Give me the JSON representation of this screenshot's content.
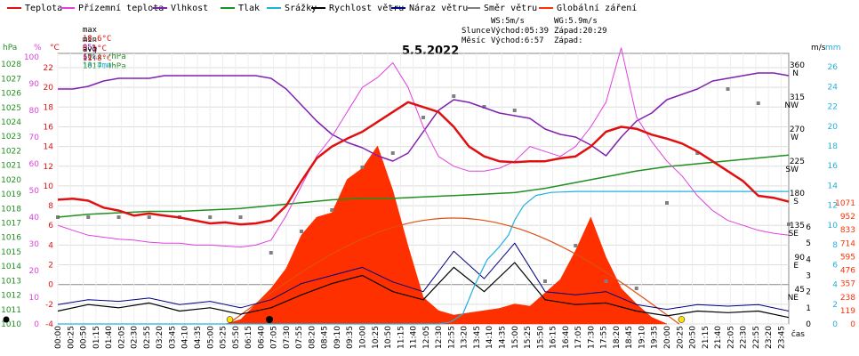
{
  "legend": [
    {
      "label": "Teplota",
      "color": "#e01010"
    },
    {
      "label": "Přízemní teplota",
      "color": "#e040e0"
    },
    {
      "label": "Vlhkost",
      "color": "#8020b0"
    },
    {
      "label": "Tlak",
      "color": "#209020"
    },
    {
      "label": "Srážky",
      "color": "#20b0e0"
    },
    {
      "label": "Rychlost větru",
      "color": "#000000"
    },
    {
      "label": "Náraz větru",
      "color": "#000080"
    },
    {
      "label": "Směr větru",
      "color": "#808080"
    },
    {
      "label": "Globální záření",
      "color": "#ff3000"
    }
  ],
  "stats": {
    "max_label": "max",
    "max_temp": "18.6°C",
    "max_hum": "95%",
    "max_press": "1021.7hPa",
    "max_rain": "13.4mm",
    "min_label": "min",
    "min_temp": "6.1°C",
    "min_hum": "61%",
    "min_press": "1017.4hPa",
    "avg_label": "avg",
    "avg_temp": "11.8°C"
  },
  "wind_info": {
    "ws": "WS:5m/s",
    "wg": "WG:5.9m/s"
  },
  "sun_moon": {
    "sun_label": "Slunce",
    "sun_rise": "Východ:05:39",
    "sun_set": "Západ:20:29",
    "moon_label": "Měsíc",
    "moon_rise": "Východ:6:57",
    "moon_set": "Západ:"
  },
  "colors": {
    "temp": "#e01010",
    "ground": "#e040e0",
    "hum": "#8020b0",
    "press": "#209020",
    "rain": "#20b0e0",
    "wind": "#000000",
    "gust": "#000080",
    "dir": "#808080",
    "solar": "#ff3000"
  },
  "chart_data": {
    "type": "line",
    "title": "5.5.2022",
    "xlabel": "čas",
    "x_ticks": [
      "00:00",
      "00:25",
      "00:50",
      "01:15",
      "01:40",
      "02:05",
      "02:30",
      "02:55",
      "03:20",
      "03:45",
      "04:10",
      "04:35",
      "05:00",
      "05:25",
      "05:50",
      "06:15",
      "06:40",
      "07:05",
      "07:30",
      "07:55",
      "08:20",
      "08:45",
      "09:10",
      "09:35",
      "10:00",
      "10:25",
      "10:50",
      "11:15",
      "11:40",
      "12:05",
      "12:30",
      "12:55",
      "13:20",
      "13:45",
      "14:10",
      "14:35",
      "15:00",
      "15:25",
      "15:50",
      "16:15",
      "16:40",
      "17:05",
      "17:30",
      "17:55",
      "18:20",
      "18:45",
      "19:10",
      "19:35",
      "20:00",
      "20:25",
      "20:50",
      "21:15",
      "21:40",
      "22:05",
      "22:30",
      "22:55",
      "23:20",
      "23:45"
    ],
    "axes": {
      "pressure": {
        "label": "hPa",
        "ticks": [
          1010,
          1011,
          1012,
          1013,
          1014,
          1015,
          1016,
          1017,
          1018,
          1019,
          1020,
          1021,
          1022,
          1023,
          1024,
          1025,
          1026,
          1027,
          1028
        ]
      },
      "humidity": {
        "label": "%",
        "ticks": [
          0,
          10,
          20,
          30,
          40,
          50,
          60,
          70,
          80,
          90,
          100
        ]
      },
      "temperature": {
        "label": "°C",
        "ticks": [
          -4,
          -2,
          0,
          2,
          4,
          6,
          8,
          10,
          12,
          14,
          16,
          18,
          20,
          22
        ]
      },
      "wind_dir": {
        "label": "m/s",
        "ticks_text": [
          "360 N",
          "315 NW",
          "270 W",
          "225 SW",
          "180 S",
          "135 SE",
          "90 E",
          "45 NE"
        ]
      },
      "rain": {
        "label": "mm",
        "ticks": [
          0,
          2,
          4,
          6,
          8,
          10,
          12,
          14,
          16,
          18,
          20,
          22,
          24,
          26
        ]
      },
      "wind_speed": {
        "ticks": [
          0,
          1,
          2,
          3,
          4,
          5,
          6
        ]
      },
      "solar": {
        "ticks": [
          0,
          119,
          238,
          357,
          476,
          595,
          714,
          833,
          952,
          1071
        ]
      }
    },
    "series": [
      {
        "name": "Teplota",
        "unit": "°C",
        "x": [
          0,
          0.5,
          1,
          1.5,
          2,
          2.5,
          3,
          3.5,
          4,
          4.5,
          5,
          5.5,
          6,
          6.5,
          7,
          7.5,
          8,
          8.5,
          9,
          9.5,
          10,
          10.5,
          11,
          11.5,
          12,
          12.5,
          13,
          13.5,
          14,
          14.5,
          15,
          15.5,
          16,
          16.5,
          17,
          17.5,
          18,
          18.5,
          19,
          19.5,
          20,
          20.5,
          21,
          21.5,
          22,
          22.5,
          23,
          23.5,
          24
        ],
        "values": [
          8.6,
          8.7,
          8.5,
          7.8,
          7.5,
          7.0,
          7.2,
          7.0,
          6.8,
          6.5,
          6.2,
          6.3,
          6.1,
          6.2,
          6.5,
          8.0,
          10.5,
          12.8,
          14.0,
          14.8,
          15.5,
          16.5,
          17.5,
          18.5,
          18.0,
          17.5,
          16.0,
          14.0,
          13.0,
          12.5,
          12.4,
          12.5,
          12.5,
          12.8,
          13.0,
          14.0,
          15.5,
          16.0,
          15.8,
          15.2,
          14.8,
          14.3,
          13.5,
          12.5,
          11.5,
          10.5,
          9.0,
          8.8,
          8.4
        ]
      },
      {
        "name": "Přízemní teplota",
        "unit": "°C",
        "x": [
          0,
          0.5,
          1,
          1.5,
          2,
          2.5,
          3,
          3.5,
          4,
          4.5,
          5,
          5.5,
          6,
          6.5,
          7,
          7.5,
          8,
          8.5,
          9,
          9.5,
          10,
          10.5,
          11,
          11.5,
          12,
          12.5,
          13,
          13.5,
          14,
          14.5,
          15,
          15.5,
          16,
          16.5,
          17,
          17.5,
          18,
          18.5,
          19,
          19.5,
          20,
          20.5,
          21,
          21.5,
          22,
          22.5,
          23,
          23.5,
          24
        ],
        "values": [
          6.0,
          5.5,
          5.0,
          4.8,
          4.6,
          4.5,
          4.3,
          4.2,
          4.2,
          4.0,
          4.0,
          3.9,
          3.8,
          4.0,
          4.5,
          7.0,
          10.0,
          13.0,
          15.0,
          17.5,
          20.0,
          21.0,
          22.5,
          20.0,
          16.0,
          13.0,
          12.0,
          11.5,
          11.5,
          11.8,
          12.5,
          14.0,
          13.5,
          13.0,
          14.0,
          16.0,
          18.5,
          24.0,
          17.0,
          14.5,
          12.5,
          11.0,
          9.0,
          7.5,
          6.5,
          6.0,
          5.5,
          5.2,
          5.0
        ]
      },
      {
        "name": "Vlhkost",
        "unit": "%",
        "x": [
          0,
          0.5,
          1,
          1.5,
          2,
          2.5,
          3,
          3.5,
          4,
          4.5,
          5,
          5.5,
          6,
          6.5,
          7,
          7.5,
          8,
          8.5,
          9,
          9.5,
          10,
          10.5,
          11,
          11.5,
          12,
          12.5,
          13,
          13.5,
          14,
          14.5,
          15,
          15.5,
          16,
          16.5,
          17,
          17.5,
          18,
          18.5,
          19,
          19.5,
          20,
          20.5,
          21,
          21.5,
          22,
          22.5,
          23,
          23.5,
          24
        ],
        "values": [
          88,
          88,
          89,
          91,
          92,
          92,
          92,
          93,
          93,
          93,
          93,
          93,
          93,
          93,
          92,
          88,
          82,
          76,
          71,
          68,
          66,
          63,
          61,
          64,
          72,
          80,
          84,
          83,
          81,
          79,
          78,
          77,
          73,
          71,
          70,
          67,
          63,
          70,
          76,
          79,
          84,
          86,
          88,
          91,
          92,
          93,
          94,
          94,
          93
        ]
      },
      {
        "name": "Tlak",
        "unit": "hPa",
        "x": [
          0,
          1,
          2,
          3,
          4,
          5,
          6,
          7,
          8,
          9,
          10,
          11,
          12,
          13,
          14,
          15,
          16,
          17,
          18,
          19,
          20,
          21,
          22,
          23,
          24
        ],
        "values": [
          1017.4,
          1017.6,
          1017.7,
          1017.8,
          1017.8,
          1017.9,
          1018.0,
          1018.2,
          1018.4,
          1018.6,
          1018.7,
          1018.7,
          1018.8,
          1018.9,
          1019.0,
          1019.1,
          1019.4,
          1019.8,
          1020.2,
          1020.6,
          1020.9,
          1021.1,
          1021.3,
          1021.5,
          1021.7
        ]
      },
      {
        "name": "Srážky",
        "unit": "mm",
        "x": [
          0,
          12.5,
          12.9,
          13.3,
          13.7,
          14.1,
          14.5,
          14.8,
          15.0,
          15.3,
          15.7,
          16.2,
          17,
          18,
          19,
          20,
          21,
          22,
          23,
          24
        ],
        "values": [
          0,
          0,
          0.2,
          1.0,
          4.0,
          6.5,
          7.8,
          9.0,
          10.5,
          12.0,
          13.0,
          13.3,
          13.4,
          13.4,
          13.4,
          13.4,
          13.4,
          13.4,
          13.4,
          13.4
        ]
      },
      {
        "name": "Rychlost větru",
        "unit": "m/s",
        "x": [
          0,
          1,
          2,
          3,
          4,
          5,
          6,
          7,
          8,
          9,
          10,
          11,
          12,
          13,
          14,
          15,
          16,
          17,
          18,
          19,
          20,
          21,
          22,
          23,
          24
        ],
        "values": [
          0.8,
          1.2,
          1.0,
          1.3,
          0.8,
          1.0,
          0.6,
          1.0,
          1.8,
          2.5,
          3.0,
          2.0,
          1.5,
          3.5,
          2.0,
          3.8,
          1.5,
          1.2,
          1.3,
          0.8,
          0.5,
          0.8,
          0.7,
          0.8,
          0.4
        ]
      },
      {
        "name": "Náraz větru",
        "unit": "m/s",
        "x": [
          0,
          1,
          2,
          3,
          4,
          5,
          6,
          7,
          8,
          9,
          10,
          11,
          12,
          13,
          14,
          15,
          16,
          17,
          18,
          19,
          20,
          21,
          22,
          23,
          24
        ],
        "values": [
          1.2,
          1.5,
          1.4,
          1.6,
          1.2,
          1.4,
          1.0,
          1.5,
          2.5,
          3.0,
          3.5,
          2.6,
          2.0,
          4.5,
          2.8,
          5.0,
          2.0,
          1.8,
          2.0,
          1.2,
          0.9,
          1.2,
          1.1,
          1.2,
          0.8
        ]
      },
      {
        "name": "Směr větru",
        "unit": "°",
        "x": [
          0,
          1,
          2,
          3,
          4,
          5,
          6,
          7,
          8,
          9,
          10,
          11,
          12,
          13,
          14,
          15,
          16,
          17,
          18,
          19,
          20,
          21,
          22,
          23,
          24
        ],
        "values": [
          150,
          150,
          150,
          150,
          150,
          150,
          150,
          100,
          130,
          160,
          220,
          240,
          290,
          320,
          305,
          300,
          60,
          110,
          60,
          50,
          170,
          240,
          330,
          310,
          140
        ]
      },
      {
        "name": "Globální záření",
        "unit": "W/m2",
        "x": [
          5.5,
          6,
          7,
          7.5,
          8,
          8.5,
          9,
          9.5,
          10,
          10.5,
          11,
          11.5,
          12,
          12.5,
          13,
          13.5,
          14,
          14.5,
          15,
          15.5,
          16,
          16.5,
          17,
          17.5,
          18,
          18.5,
          19,
          19.5,
          20
        ],
        "values": [
          0,
          20,
          160,
          250,
          400,
          480,
          500,
          650,
          700,
          800,
          600,
          350,
          120,
          60,
          40,
          50,
          60,
          70,
          90,
          80,
          140,
          200,
          330,
          480,
          300,
          160,
          90,
          30,
          0
        ]
      }
    ]
  }
}
